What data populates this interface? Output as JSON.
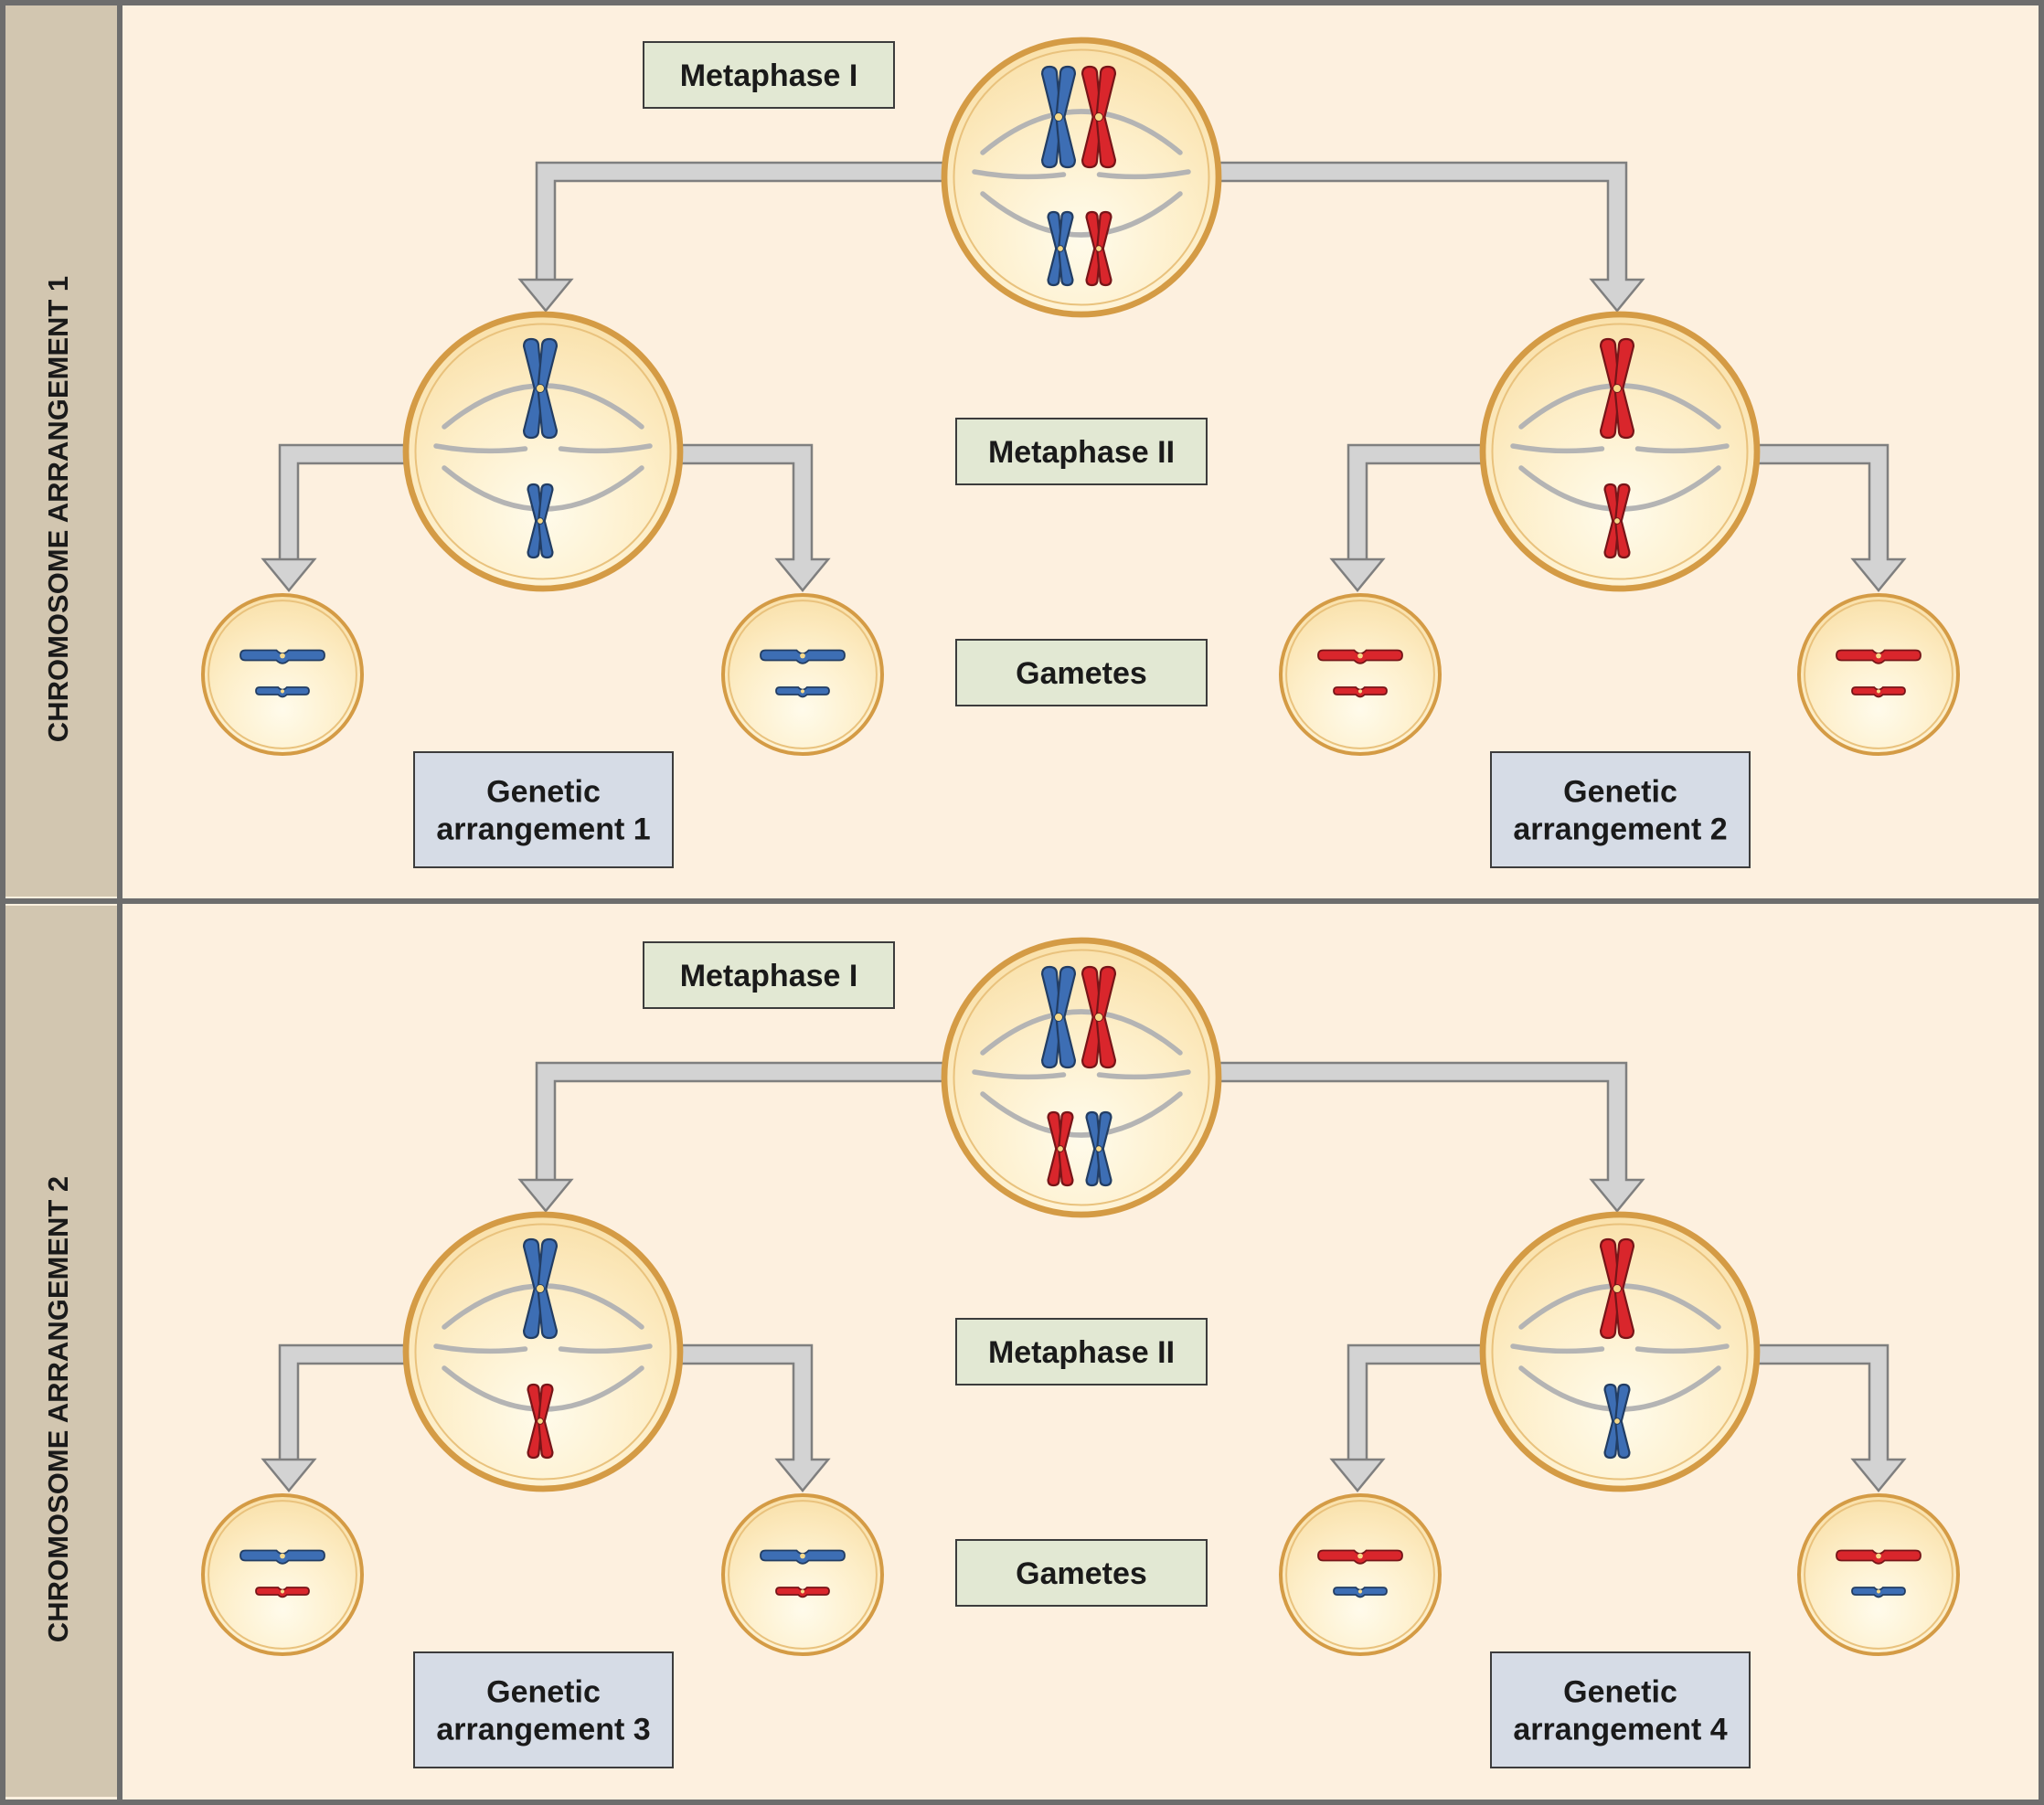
{
  "panels": [
    {
      "side_label": "CHROMOSOME ARRANGEMENT 1",
      "metaphase1_label": "Metaphase I",
      "metaphase2_label": "Metaphase II",
      "gametes_label": "Gametes",
      "left_arrangement": [
        "Genetic",
        "arrangement 1"
      ],
      "right_arrangement": [
        "Genetic",
        "arrangement 2"
      ],
      "meta1": {
        "top": [
          "blue",
          "red"
        ],
        "bottom": [
          "blue",
          "red"
        ]
      },
      "meta2_left": {
        "big": "blue",
        "small": "blue"
      },
      "meta2_right": {
        "big": "red",
        "small": "red"
      }
    },
    {
      "side_label": "CHROMOSOME ARRANGEMENT 2",
      "metaphase1_label": "Metaphase I",
      "metaphase2_label": "Metaphase II",
      "gametes_label": "Gametes",
      "left_arrangement": [
        "Genetic",
        "arrangement 3"
      ],
      "right_arrangement": [
        "Genetic",
        "arrangement 4"
      ],
      "meta1": {
        "top": [
          "blue",
          "red"
        ],
        "bottom": [
          "red",
          "blue"
        ]
      },
      "meta2_left": {
        "big": "blue",
        "small": "red"
      },
      "meta2_right": {
        "big": "red",
        "small": "blue"
      }
    }
  ],
  "colors": {
    "blue": "#3d6eb4",
    "red": "#d9262c",
    "panel_bg": "#fdf0df",
    "side_bg": "#d2c6b0",
    "frame": "#6d6d6d",
    "cell_fill": "#fde9b9",
    "cell_ring": "#d49b45",
    "label_green": "#e2e8d3",
    "label_blue": "#d6dce6",
    "arrow_fill": "#d3d3d3",
    "arrow_stroke": "#7f7f7f",
    "spindle": "#b4b4b4"
  }
}
